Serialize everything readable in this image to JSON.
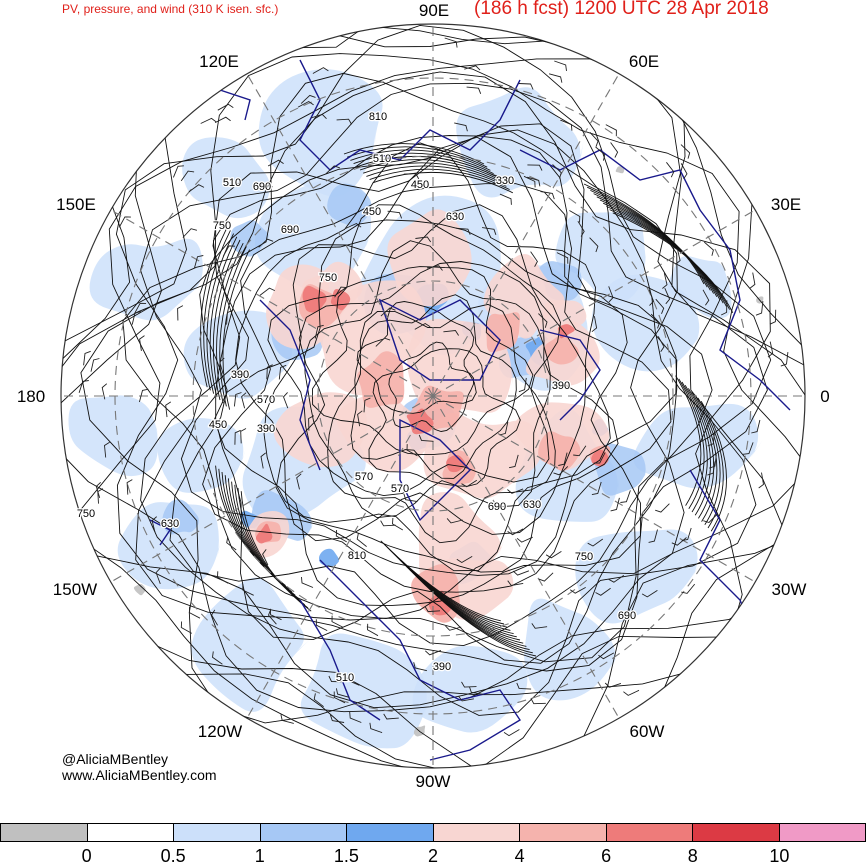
{
  "header": {
    "left_title": "PV, pressure, and wind (310 K isen. sfc.)",
    "right_title": "(186 h fcst) 1200 UTC 28 Apr 2018"
  },
  "map": {
    "projection": "north-polar-stereographic",
    "longitude_labels": {
      "lon_90e": "90E",
      "lon_60e": "60E",
      "lon_30e": "30E",
      "lon_0": "0",
      "lon_30w": "30W",
      "lon_60w": "60W",
      "lon_90w": "90W",
      "lon_120w": "120W",
      "lon_150w": "150W",
      "lon_180": "180",
      "lon_150e": "150E",
      "lon_120e": "120E"
    },
    "contour_labels": [
      "810",
      "690",
      "750",
      "510",
      "450",
      "630",
      "330",
      "690",
      "750",
      "510",
      "450",
      "390",
      "570",
      "390",
      "450",
      "390",
      "570",
      "570",
      "630",
      "690",
      "750",
      "690",
      "750",
      "630",
      "510",
      "390",
      "810"
    ],
    "colors": {
      "pv_0_05": "#ffffff",
      "pv_05_1": "#cce0fa",
      "pv_1_15": "#a6c8f5",
      "pv_15_2": "#6fa8ef",
      "pv_2_4": "#f8d6d2",
      "pv_4_6": "#f5b3ad",
      "pv_6_8": "#ee7b7a",
      "pv_8_10": "#dc3a44",
      "pv_10p": "#f09ac6",
      "pv_neg": "#c0c0c0",
      "coastline": "#1a1a8c",
      "contour": "#111111",
      "grid": "#777777"
    }
  },
  "credits": {
    "handle": "@AliciaMBentley",
    "site": "www.AliciaMBentley.com"
  },
  "colorbar": {
    "segment_colors": [
      "#c0c0c0",
      "#ffffff",
      "#cce0fa",
      "#a6c8f5",
      "#6fa8ef",
      "#f8d6d2",
      "#f5b3ad",
      "#ee7b7a",
      "#dc3a44",
      "#f09ac6"
    ],
    "tick_labels": [
      "0",
      "0.5",
      "1",
      "1.5",
      "2",
      "4",
      "6",
      "8",
      "10"
    ]
  }
}
